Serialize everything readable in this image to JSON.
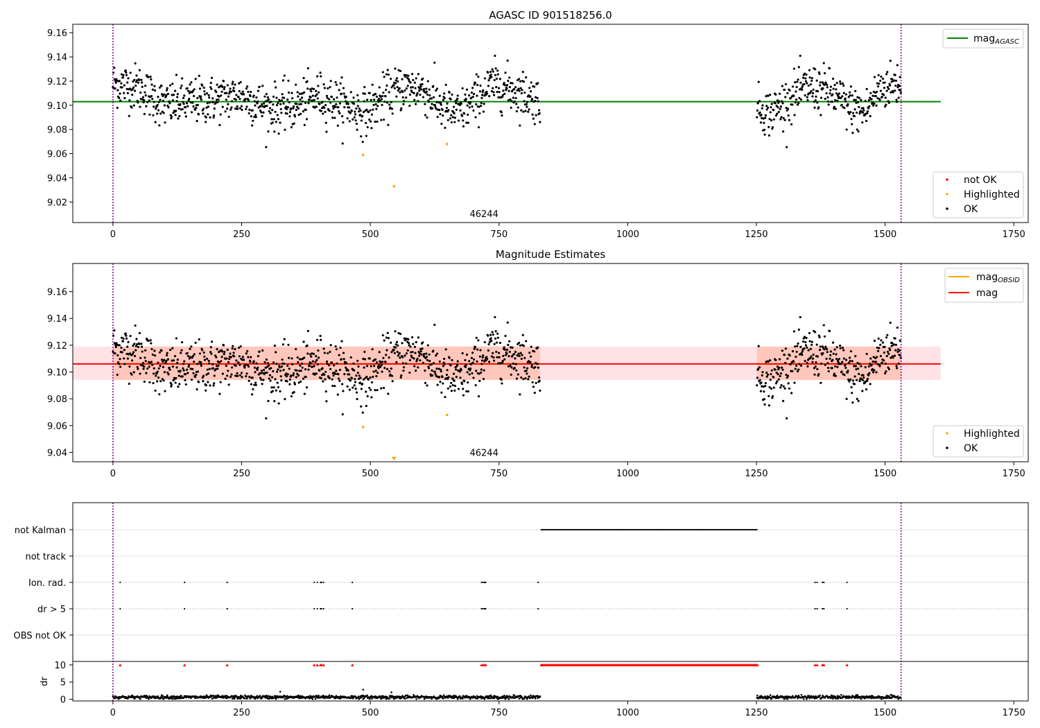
{
  "chart_data": [
    {
      "type": "scatter",
      "title": "AGASC ID 901518256.0",
      "xlim": [
        -78,
        1778
      ],
      "ylim": [
        9.003,
        9.167
      ],
      "xticks": [
        "0",
        "250",
        "500",
        "750",
        "1000",
        "1250",
        "1500",
        "1750"
      ],
      "yticks": [
        "9.02",
        "9.04",
        "9.06",
        "9.08",
        "9.10",
        "9.12",
        "9.14",
        "9.16"
      ],
      "vlines": [
        0,
        1531
      ],
      "vline_color": "#800080",
      "hline": {
        "y": 9.103,
        "x_range": [
          -78,
          1608
        ],
        "color": "#008000",
        "label": "mag_AGASC"
      },
      "annotation": {
        "text": "46244",
        "x": 760,
        "y": 9.0075
      },
      "series": [
        {
          "name": "not OK",
          "color": "#ff0000",
          "x": [],
          "y": []
        },
        {
          "name": "Highlighted",
          "color": "#ffa500",
          "x": [
            486,
            546,
            649
          ],
          "y": [
            9.059,
            9.033,
            9.068
          ]
        },
        {
          "name": "OK",
          "color": "#000000",
          "segments": [
            {
              "x_start": 0,
              "x_end": 830,
              "trend": [
                [
                  0,
                  9.118
                ],
                [
                  50,
                  9.115
                ],
                [
                  100,
                  9.1
                ],
                [
                  150,
                  9.103
                ],
                [
                  200,
                  9.105
                ],
                [
                  250,
                  9.108
                ],
                [
                  300,
                  9.098
                ],
                [
                  350,
                  9.099
                ],
                [
                  400,
                  9.108
                ],
                [
                  450,
                  9.1
                ],
                [
                  490,
                  9.094
                ],
                [
                  520,
                  9.104
                ],
                [
                  560,
                  9.115
                ],
                [
                  600,
                  9.114
                ],
                [
                  640,
                  9.098
                ],
                [
                  670,
                  9.093
                ],
                [
                  700,
                  9.103
                ],
                [
                  740,
                  9.118
                ],
                [
                  780,
                  9.112
                ],
                [
                  830,
                  9.104
                ]
              ]
            },
            {
              "x_start": 1251,
              "x_end": 1531,
              "trend": [
                [
                  1251,
                  9.097
                ],
                [
                  1280,
                  9.094
                ],
                [
                  1310,
                  9.104
                ],
                [
                  1350,
                  9.115
                ],
                [
                  1390,
                  9.112
                ],
                [
                  1430,
                  9.098
                ],
                [
                  1460,
                  9.094
                ],
                [
                  1490,
                  9.114
                ],
                [
                  1531,
                  9.119
                ]
              ]
            }
          ]
        }
      ],
      "legends": [
        {
          "position": "upper-right",
          "entries": [
            "mag",
            "AGASC"
          ]
        },
        {
          "position": "lower-right",
          "entries": [
            "not OK",
            "Highlighted",
            "OK"
          ]
        }
      ]
    },
    {
      "type": "scatter",
      "title": "Magnitude Estimates",
      "xlim": [
        -78,
        1778
      ],
      "ylim": [
        9.033,
        9.181
      ],
      "xticks": [
        "0",
        "250",
        "500",
        "750",
        "1000",
        "1250",
        "1500",
        "1750"
      ],
      "yticks": [
        "9.04",
        "9.06",
        "9.08",
        "9.10",
        "9.12",
        "9.14",
        "9.16"
      ],
      "vlines": [
        0,
        1531
      ],
      "bands": [
        {
          "x_range": [
            -78,
            1608
          ],
          "y_range": [
            9.094,
            9.119
          ],
          "color": "#ffb6c1",
          "opacity": 0.4
        },
        {
          "x_range": [
            0,
            830
          ],
          "y_range": [
            9.094,
            9.119
          ],
          "color": "#ffa07a",
          "opacity": 0.4
        },
        {
          "x_range": [
            1251,
            1531
          ],
          "y_range": [
            9.094,
            9.119
          ],
          "color": "#ffa07a",
          "opacity": 0.4
        }
      ],
      "hline": {
        "y": 9.106,
        "x_range": [
          -78,
          1608
        ],
        "color": "#ff0000",
        "label": "mag"
      },
      "obsid_lines": [
        {
          "x_range": [
            0,
            830
          ],
          "y": 9.106
        },
        {
          "x_range": [
            1251,
            1531
          ],
          "y": 9.106
        }
      ],
      "annotation": {
        "text": "46244",
        "x": 760,
        "y": 9.0375
      },
      "series": [
        {
          "name": "Highlighted",
          "color": "#ffa500",
          "x": [
            486,
            546,
            649
          ],
          "y": [
            9.059,
            9.034,
            9.068
          ]
        },
        {
          "name": "OK",
          "color": "#000000",
          "same_as_panel": 0
        }
      ],
      "legends": [
        {
          "position": "upper-right",
          "entries": [
            "mag",
            "OBSID",
            "mag"
          ]
        },
        {
          "position": "lower-right",
          "entries": [
            "Highlighted",
            "OK"
          ]
        }
      ]
    },
    {
      "type": "scatter",
      "title": "",
      "xlim": [
        -78,
        1778
      ],
      "xticks": [
        "0",
        "250",
        "500",
        "750",
        "1000",
        "1250",
        "1500",
        "1750"
      ],
      "categories": [
        "not Kalman",
        "not track",
        "Ion. rad.",
        "dr > 5",
        "OBS not OK"
      ],
      "flags": {
        "not Kalman": [
          [
            832,
            1252
          ]
        ],
        "not track": [],
        "Ion. rad.": [
          14,
          139,
          222,
          391,
          397,
          403,
          405,
          409,
          465,
          716,
          719,
          722,
          724,
          826,
          1364,
          1368,
          1378,
          1381,
          1426
        ],
        "dr > 5": [
          14,
          139,
          222,
          391,
          397,
          403,
          405,
          409,
          465,
          716,
          719,
          722,
          724,
          826,
          1364,
          1368,
          1378,
          1381,
          1426
        ],
        "OBS not OK": []
      },
      "dr": {
        "ylabel": "dr",
        "yticks": [
          "0",
          "5",
          "10"
        ],
        "ylim": [
          -0.5,
          11
        ],
        "clipped_markers_x": [
          14,
          139,
          222,
          391,
          397,
          403,
          405,
          409,
          465,
          716,
          719,
          722,
          724,
          832,
          1252,
          1364,
          1368,
          1378,
          1381,
          1426
        ],
        "clipped_range": [
          832,
          1252
        ],
        "segments": [
          [
            0,
            830
          ],
          [
            1251,
            1531
          ]
        ],
        "typical": 0.6,
        "outliers": [
          {
            "x": 325,
            "y": 2.2
          },
          {
            "x": 486,
            "y": 2.8
          },
          {
            "x": 541,
            "y": 2.0
          }
        ]
      }
    }
  ],
  "legend_labels": {
    "mag_main": "mag",
    "agasc_sub": "AGASC",
    "obsid_sub": "OBSID",
    "mag": "mag",
    "not_ok": "not OK",
    "highlighted": "Highlighted",
    "ok": "OK"
  }
}
